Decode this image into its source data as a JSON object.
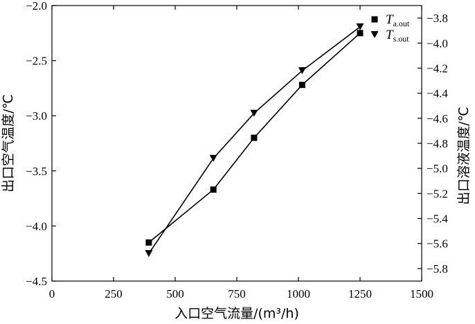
{
  "chart_data": {
    "type": "line",
    "xlabel": "入口空气流量/(m³/h)",
    "ylabel_left": "出口空气温度/℃",
    "ylabel_right": "出口溶液温度/℃",
    "xlim": [
      0,
      1500
    ],
    "ylim_left": [
      -4.5,
      -2.0
    ],
    "ylim_right": [
      -5.9,
      -3.7
    ],
    "x_ticks": [
      0,
      250,
      500,
      750,
      1000,
      1250,
      1500
    ],
    "y_left_ticks": [
      -4.5,
      -4.0,
      -3.5,
      -3.0,
      -2.5,
      -2.0
    ],
    "y_left_tick_labels": [
      "−4.5",
      "−4.0",
      "−3.5",
      "−3.0",
      "−2.5",
      "−2.0"
    ],
    "y_right_ticks": [
      -5.8,
      -5.6,
      -5.4,
      -5.2,
      -5.0,
      -4.8,
      -4.6,
      -4.4,
      -4.2,
      -4.0,
      -3.8
    ],
    "y_right_tick_labels": [
      "−5.8",
      "−5.6",
      "−5.4",
      "−5.2",
      "−5.0",
      "−4.8",
      "−4.6",
      "−4.4",
      "−4.2",
      "−4.0",
      "−3.8"
    ],
    "legend_position": "top-right",
    "series": [
      {
        "name": "T_a.out",
        "label_main": "T",
        "label_sub": "a.out",
        "axis": "left",
        "marker": "square",
        "x": [
          393,
          655,
          820,
          1015,
          1250
        ],
        "y": [
          -4.15,
          -3.67,
          -3.2,
          -2.72,
          -2.25
        ]
      },
      {
        "name": "T_s.out",
        "label_main": "T",
        "label_sub": "s.out",
        "axis": "right",
        "marker": "triangle-down",
        "x": [
          393,
          655,
          820,
          1015,
          1250
        ],
        "y": [
          -5.68,
          -4.92,
          -4.56,
          -4.22,
          -3.87
        ]
      }
    ]
  }
}
